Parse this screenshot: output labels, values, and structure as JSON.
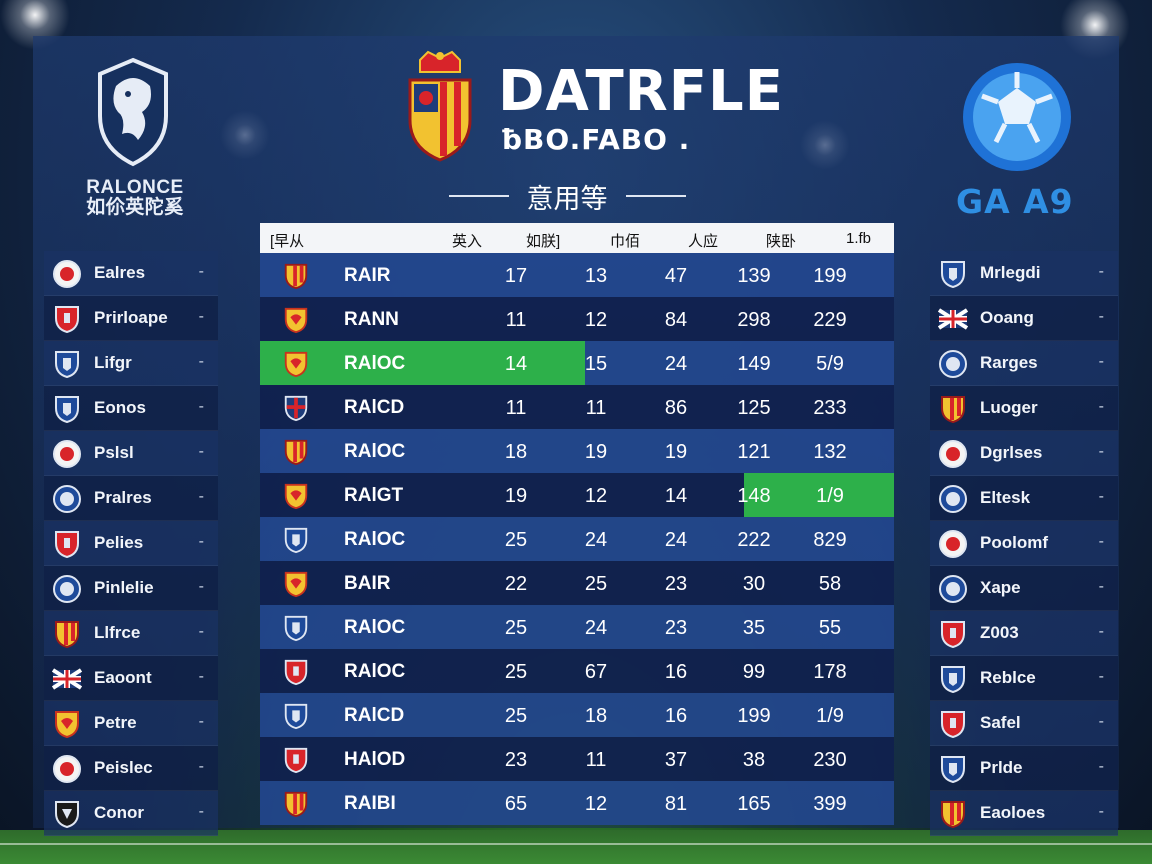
{
  "header": {
    "left_title_line1": "RALONCE",
    "left_title_line2": "如伱英陀奚",
    "main_title": "DATRFLE",
    "main_subtitle": "ƀBO.FABO .",
    "section_title": "意用等",
    "right_title": "GA A9"
  },
  "table": {
    "columns": [
      "[早从",
      "英入",
      "如朕]",
      "巾佰",
      "人应",
      "陕卧",
      "1.fb"
    ],
    "rows": [
      {
        "badge": "striped-shield-icon",
        "code": "RAIR",
        "c1": "17",
        "c2": "13",
        "c3": "47",
        "c4": "139",
        "c5": "199"
      },
      {
        "badge": "yellow-shield-icon",
        "code": "RANN",
        "c1": "11",
        "c2": "12",
        "c3": "84",
        "c4": "298",
        "c5": "229"
      },
      {
        "badge": "yellow-shield-icon",
        "code": "RAlOC",
        "c1": "14",
        "c2": "15",
        "c3": "24",
        "c4": "149",
        "c5": "5/9"
      },
      {
        "badge": "union-jack-shield-icon",
        "code": "RAlCD",
        "c1": "11",
        "c2": "11",
        "c3": "86",
        "c4": "125",
        "c5": "233"
      },
      {
        "badge": "striped-shield-icon",
        "code": "RAlOC",
        "c1": "18",
        "c2": "19",
        "c3": "19",
        "c4": "121",
        "c5": "132"
      },
      {
        "badge": "yellow-shield-icon",
        "code": "RAlGT",
        "c1": "19",
        "c2": "12",
        "c3": "14",
        "c4": "148",
        "c5": "1/9"
      },
      {
        "badge": "blue-shield-icon",
        "code": "RAlOC",
        "c1": "25",
        "c2": "24",
        "c3": "24",
        "c4": "222",
        "c5": "829"
      },
      {
        "badge": "yellow-shield-icon",
        "code": "BAIR",
        "c1": "22",
        "c2": "25",
        "c3": "23",
        "c4": "30",
        "c5": "58"
      },
      {
        "badge": "blue-shield-icon",
        "code": "RAlOC",
        "c1": "25",
        "c2": "24",
        "c3": "23",
        "c4": "35",
        "c5": "55"
      },
      {
        "badge": "red-shield-icon",
        "code": "RAlOC",
        "c1": "25",
        "c2": "67",
        "c3": "16",
        "c4": "99",
        "c5": "178"
      },
      {
        "badge": "blue-shield-icon",
        "code": "RAlCD",
        "c1": "25",
        "c2": "18",
        "c3": "16",
        "c4": "199",
        "c5": "1/9"
      },
      {
        "badge": "red-shield-icon",
        "code": "HAlOD",
        "c1": "23",
        "c2": "11",
        "c3": "37",
        "c4": "38",
        "c5": "230"
      },
      {
        "badge": "striped-shield-icon",
        "code": "RAIBI",
        "c1": "65",
        "c2": "12",
        "c3": "81",
        "c4": "165",
        "c5": "399"
      }
    ]
  },
  "left_list": [
    {
      "icon": "white-round-badge-icon",
      "name": "Ealres",
      "dash": "-"
    },
    {
      "icon": "red-shield-icon",
      "name": "Prirloape",
      "dash": "-"
    },
    {
      "icon": "blue-shield-icon",
      "name": "Lifgr",
      "dash": "-"
    },
    {
      "icon": "blue-shield-icon",
      "name": "Eonos",
      "dash": "-"
    },
    {
      "icon": "white-round-badge-icon",
      "name": "Pslsl",
      "dash": "-"
    },
    {
      "icon": "blue-round-badge-icon",
      "name": "Pralres",
      "dash": "-"
    },
    {
      "icon": "red-shield-icon",
      "name": "Pelies",
      "dash": "-"
    },
    {
      "icon": "blue-round-badge-icon",
      "name": "Pinlelie",
      "dash": "-"
    },
    {
      "icon": "striped-shield-icon",
      "name": "Llfrce",
      "dash": "-"
    },
    {
      "icon": "union-jack-icon",
      "name": "Eaoont",
      "dash": "-"
    },
    {
      "icon": "yellow-shield-icon",
      "name": "Petre",
      "dash": "-"
    },
    {
      "icon": "white-round-badge-icon",
      "name": "Peislec",
      "dash": "-"
    },
    {
      "icon": "black-shield-icon",
      "name": "Conor",
      "dash": "-"
    }
  ],
  "right_list": [
    {
      "icon": "blue-shield-icon",
      "name": "Mrlegdi",
      "dash": "-"
    },
    {
      "icon": "union-jack-icon",
      "name": "Ooang",
      "dash": "-"
    },
    {
      "icon": "blue-round-badge-icon",
      "name": "Rarges",
      "dash": "-"
    },
    {
      "icon": "striped-shield-icon",
      "name": "Luoger",
      "dash": "-"
    },
    {
      "icon": "white-round-badge-icon",
      "name": "Dgrlses",
      "dash": "-"
    },
    {
      "icon": "blue-round-badge-icon",
      "name": "Eltesk",
      "dash": "-"
    },
    {
      "icon": "white-round-badge-icon",
      "name": "Poolomf",
      "dash": "-"
    },
    {
      "icon": "blue-round-badge-icon",
      "name": "Xape",
      "dash": "-"
    },
    {
      "icon": "red-shield-icon",
      "name": "Z003",
      "dash": "-"
    },
    {
      "icon": "blue-shield-icon",
      "name": "Reblce",
      "dash": "-"
    },
    {
      "icon": "red-shield-icon",
      "name": "Safel",
      "dash": "-"
    },
    {
      "icon": "blue-shield-icon",
      "name": "Prlde",
      "dash": "-"
    },
    {
      "icon": "striped-shield-icon",
      "name": "Eaoloes",
      "dash": "-"
    }
  ],
  "colors": {
    "highlight_green": "#2db04a",
    "header_bg": "#f3f5f8",
    "right_title": "#2f8fe3"
  },
  "highlights": [
    {
      "row": 2,
      "columns": [
        "code",
        "c1"
      ]
    },
    {
      "row": 5,
      "columns": [
        "c4",
        "c5"
      ]
    }
  ]
}
